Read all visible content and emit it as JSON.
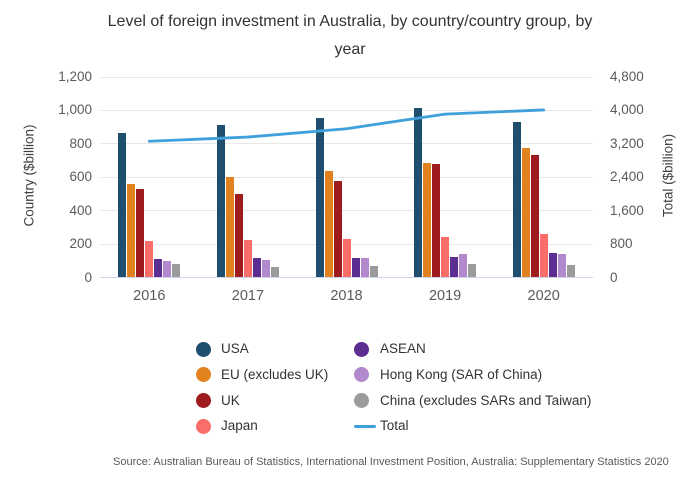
{
  "title": "Level of foreign investment in Australia, by country/country group, by year",
  "source": "Source: Australian Bureau of Statistics, International Investment Position, Australia: Supplementary Statistics 2020",
  "chart_data": {
    "type": "bar",
    "categories": [
      "2016",
      "2017",
      "2018",
      "2019",
      "2020"
    ],
    "series": [
      {
        "name": "USA",
        "color": "#1e4f6e",
        "values": [
          860,
          910,
          950,
          1010,
          925
        ]
      },
      {
        "name": "EU (excludes UK)",
        "color": "#e2821e",
        "values": [
          555,
          600,
          635,
          680,
          775
        ]
      },
      {
        "name": "UK",
        "color": "#9e1b1e",
        "values": [
          525,
          495,
          575,
          675,
          730
        ]
      },
      {
        "name": "Japan",
        "color": "#fb6d68",
        "values": [
          215,
          220,
          230,
          240,
          260
        ]
      },
      {
        "name": "ASEAN",
        "color": "#5d2e91",
        "values": [
          105,
          115,
          115,
          120,
          145
        ]
      },
      {
        "name": "Hong Kong (SAR of China)",
        "color": "#b289cc",
        "values": [
          95,
          100,
          115,
          135,
          135
        ]
      },
      {
        "name": "China (excludes SARs and Taiwan)",
        "color": "#9b9b9b",
        "values": [
          80,
          60,
          65,
          75,
          70
        ]
      }
    ],
    "line_series": {
      "name": "Total",
      "color": "#3fa0db",
      "values": [
        3250,
        3350,
        3550,
        3900,
        4000
      ]
    },
    "left_axis": {
      "label": "Country ($billion)",
      "ticks": [
        0,
        200,
        400,
        600,
        800,
        1000,
        1200
      ],
      "max": 1200
    },
    "right_axis": {
      "label": "Total ($billion)",
      "ticks": [
        0,
        800,
        1600,
        2400,
        3200,
        4000,
        4800
      ],
      "max": 4800
    },
    "grid": true,
    "legend_position": "bottom"
  },
  "legend": {
    "left_column": [
      "USA",
      "EU (excludes UK)",
      "UK",
      "Japan"
    ],
    "right_column": [
      "ASEAN",
      "Hong Kong (SAR of China)",
      "China (excludes SARs and Taiwan)",
      "Total"
    ]
  }
}
